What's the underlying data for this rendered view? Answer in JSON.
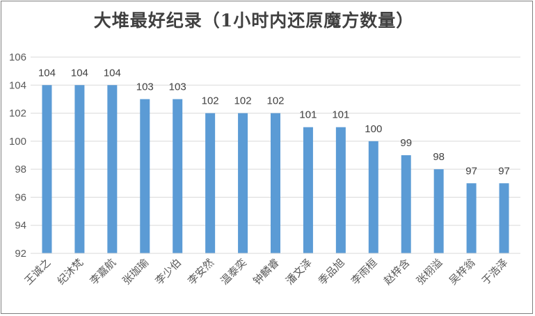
{
  "chart_data": {
    "type": "bar",
    "title": "大堆最好纪录（1小时内还原魔方数量）",
    "categories": [
      "王诚之",
      "纪沐梵",
      "李嘉航",
      "张珈瑜",
      "李少伯",
      "李安然",
      "温泰奕",
      "钟麟睿",
      "潘文泽",
      "季品旭",
      "李雨桓",
      "赵梓含",
      "张栩溢",
      "吴梓翁",
      "于浩泽"
    ],
    "values": [
      104,
      104,
      104,
      103,
      103,
      102,
      102,
      102,
      101,
      101,
      100,
      99,
      98,
      97,
      97
    ],
    "ylim": [
      92,
      106
    ],
    "yticks": [
      92,
      94,
      96,
      98,
      100,
      102,
      104,
      106
    ],
    "grid": true,
    "bar_color": "#5b9bd5",
    "grid_color": "#d9d9d9"
  }
}
